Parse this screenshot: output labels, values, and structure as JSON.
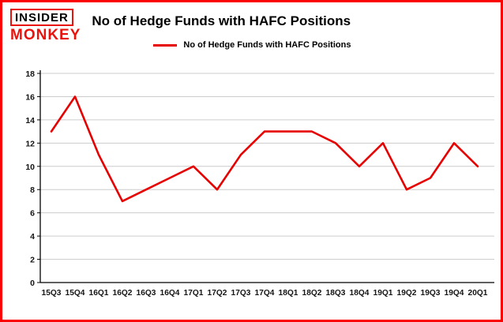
{
  "page": {
    "border_color": "#fb0000",
    "background": "#ffffff"
  },
  "header": {
    "logo": {
      "line1": "INSIDER",
      "line2": "MONKEY",
      "accent": "#e8130c"
    },
    "title": "No of Hedge Funds with HAFC Positions",
    "legend": {
      "label": "No of Hedge Funds with HAFC Positions",
      "line_color": "#e60000"
    }
  },
  "chart_data": {
    "type": "line",
    "title": "No of Hedge Funds with HAFC Positions",
    "categories": [
      "15Q3",
      "15Q4",
      "16Q1",
      "16Q2",
      "16Q3",
      "16Q4",
      "17Q1",
      "17Q2",
      "17Q3",
      "17Q4",
      "18Q1",
      "18Q2",
      "18Q3",
      "18Q4",
      "19Q1",
      "19Q2",
      "19Q3",
      "19Q4",
      "20Q1"
    ],
    "values": [
      13,
      16,
      11,
      7,
      8,
      9,
      10,
      8,
      11,
      13,
      13,
      13,
      12,
      10,
      12,
      8,
      9,
      12,
      10
    ],
    "xlabel": "",
    "ylabel": "",
    "ylim": [
      0,
      18
    ],
    "ytick_step": 2,
    "line_color": "#e60000",
    "grid": true,
    "grid_color": "#cccccc",
    "axis_color": "#000000",
    "legend_position": "top-left"
  }
}
